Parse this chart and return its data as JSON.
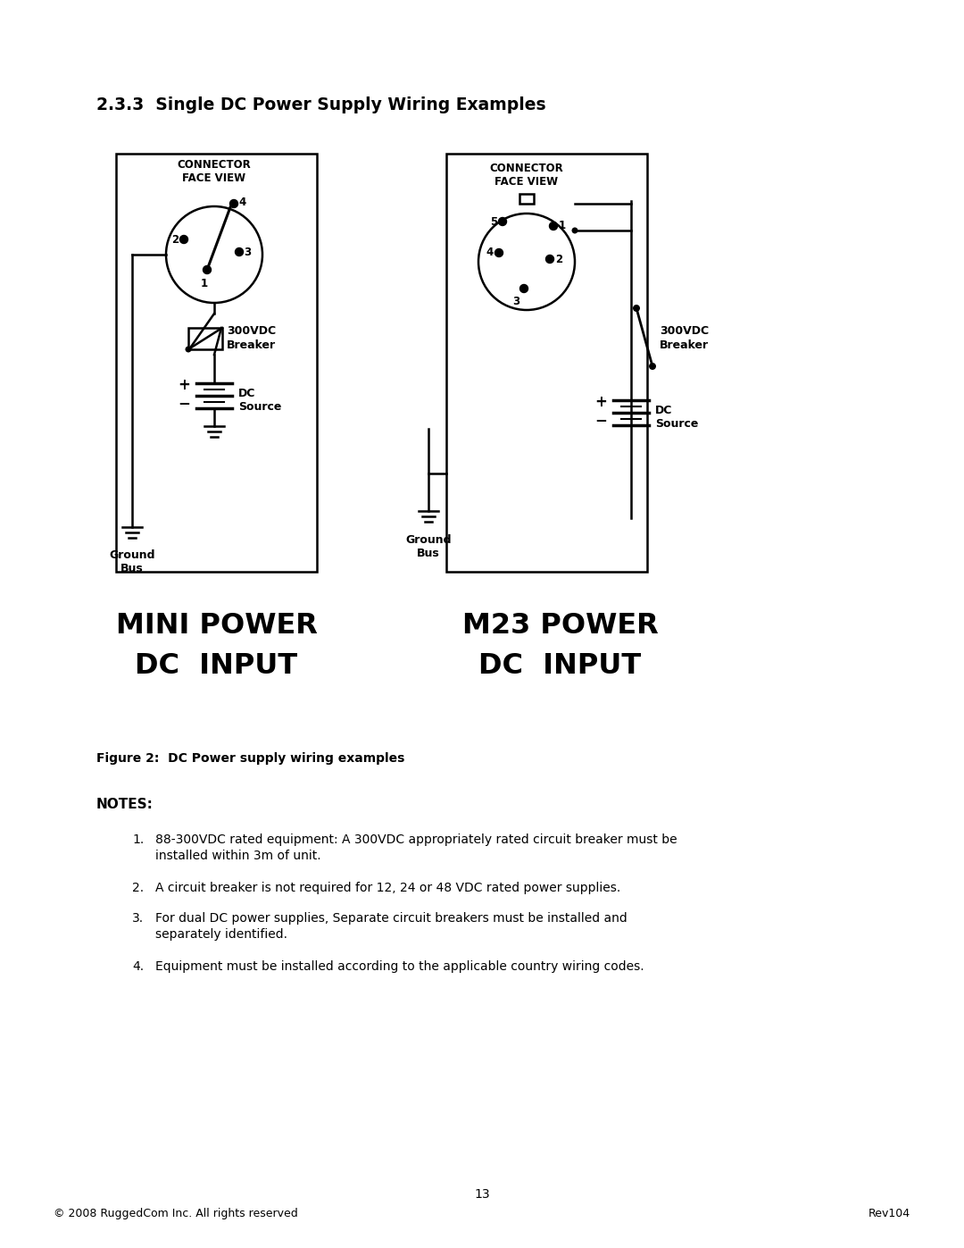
{
  "page_title": "2.3.3  Single DC Power Supply Wiring Examples",
  "figure_caption": "Figure 2:  DC Power supply wiring examples",
  "notes_header": "NOTES:",
  "note1": "88-300VDC rated equipment: A 300VDC appropriately rated circuit breaker must be\ninstalled within 3m of unit.",
  "note2": "A circuit breaker is not required for 12, 24 or 48 VDC rated power supplies.",
  "note3": "For dual DC power supplies, Separate circuit breakers must be installed and\nseparately identified.",
  "note4": "Equipment must be installed according to the applicable country wiring codes.",
  "mini_label_line1": "MINI POWER",
  "mini_label_line2": "DC  INPUT",
  "m23_label_line1": "M23 POWER",
  "m23_label_line2": "DC  INPUT",
  "footer_left": "© 2008 RuggedCom Inc. All rights reserved",
  "footer_right": "Rev104",
  "page_number": "13",
  "bg_color": "#ffffff",
  "text_color": "#000000"
}
